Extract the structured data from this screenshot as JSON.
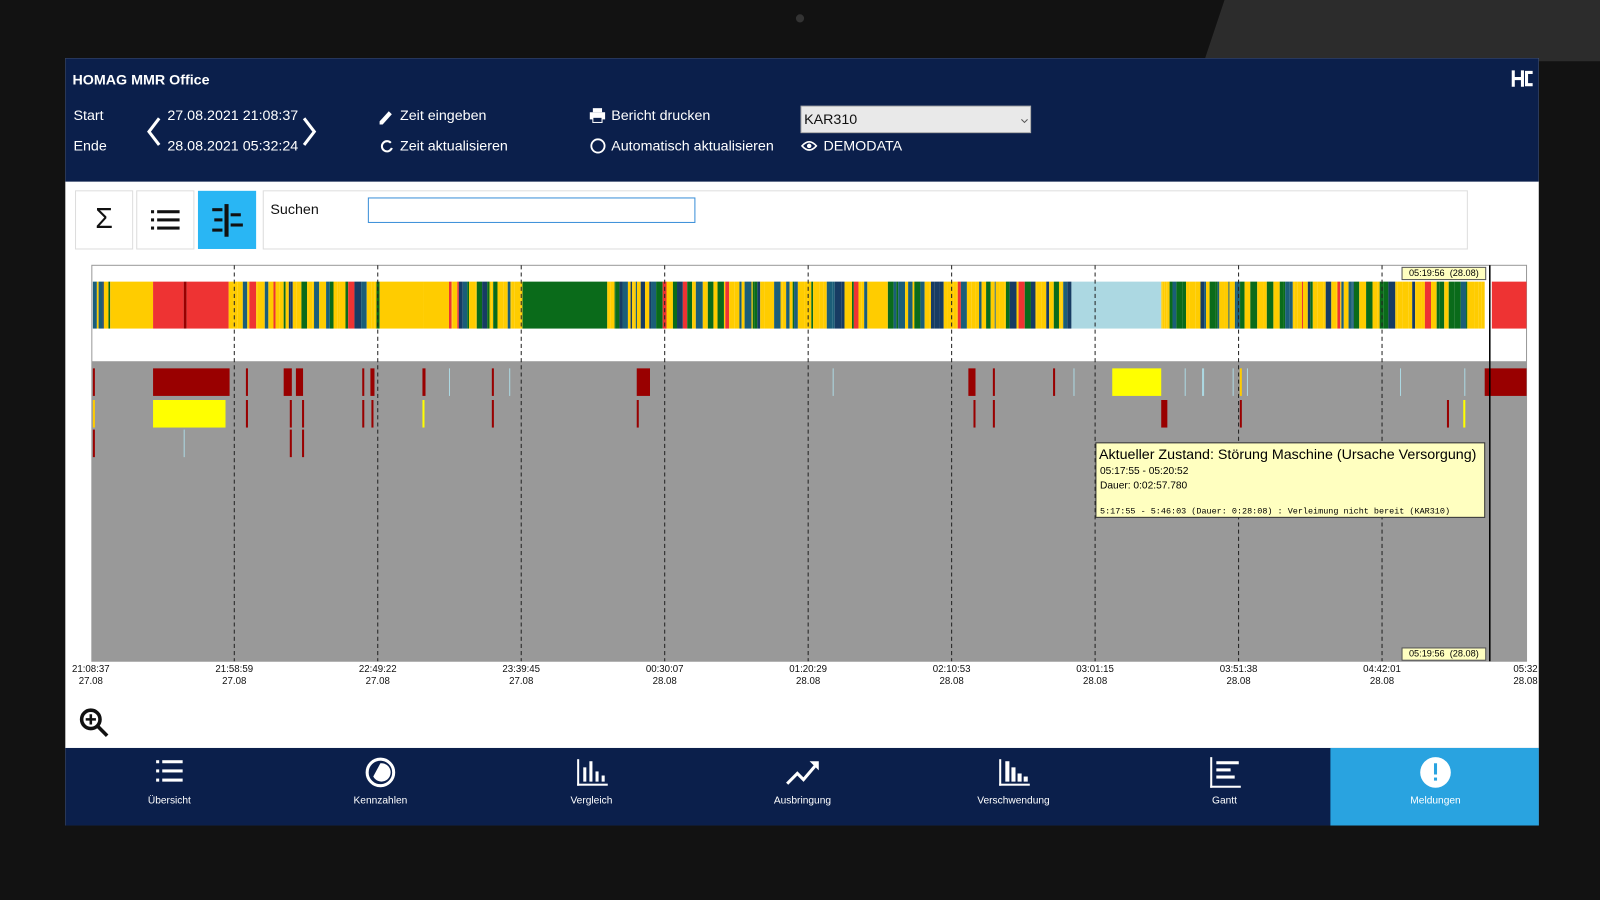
{
  "header": {
    "title": "HOMAG MMR Office",
    "start_label": "Start",
    "end_label": "Ende",
    "start": "27.08.2021 21:08:37",
    "end": "28.08.2021 05:32:24",
    "actions": [
      "Zeit eingeben",
      "Zeit aktualisieren",
      "Bericht drucken",
      "Automatisch aktualisieren"
    ],
    "machine": "KAR310",
    "source": "DEMODATA"
  },
  "search": {
    "label": "Suchen"
  },
  "timeline": {
    "times": [
      "21:08:37",
      "21:58:59",
      "22:49:22",
      "23:39:45",
      "00:30:07",
      "01:20:29",
      "02:10:53",
      "03:01:15",
      "03:51:38",
      "04:42:01",
      "05:32"
    ],
    "dates": [
      "27.08",
      "27.08",
      "27.08",
      "27.08",
      "28.08",
      "28.08",
      "28.08",
      "28.08",
      "28.08",
      "28.08",
      "28.08"
    ],
    "marker": "05:19:56  (28.08)",
    "tooltip": {
      "title": "Aktueller Zustand: Störung Maschine (Ursache Versorgung)",
      "lines": [
        "05:17:55 - 05:20:52",
        "Dauer: 0:02:57.780",
        "5:17:55 - 5:46:03 (Dauer: 0:28:08) : Verleimung nicht bereit (KAR310)"
      ]
    }
  },
  "nav": {
    "items": [
      "Übersicht",
      "Kennzahlen",
      "Vergleich",
      "Ausbringung",
      "Verschwendung",
      "Gantt",
      "Meldungen"
    ],
    "active": 6
  }
}
